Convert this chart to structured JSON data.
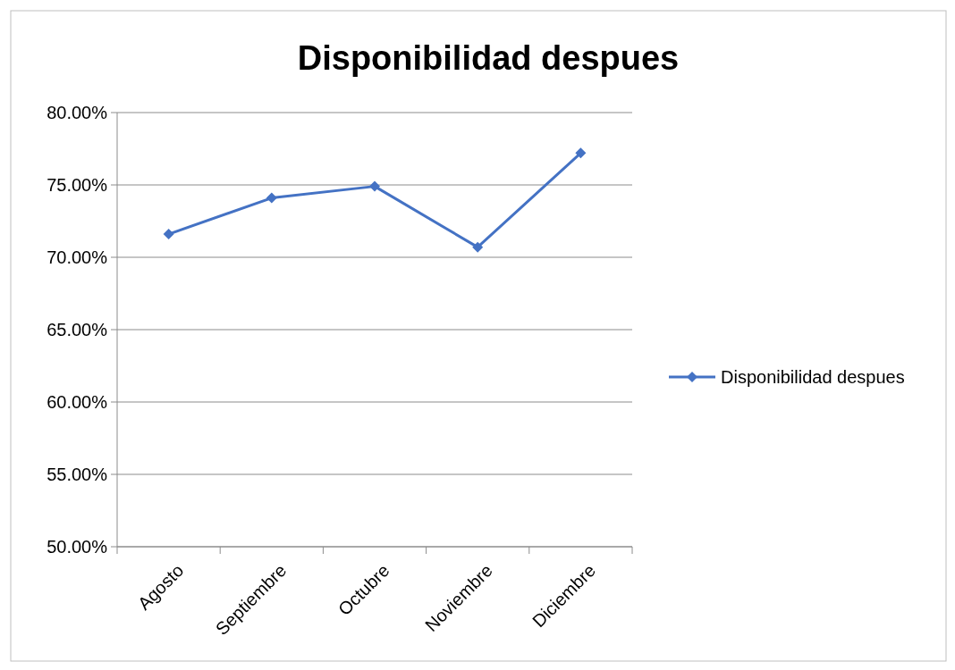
{
  "chart_data": {
    "type": "line",
    "title": "Disponibilidad despues",
    "categories": [
      "Agosto",
      "Septiembre",
      "Octubre",
      "Noviembre",
      "Diciembre"
    ],
    "series": [
      {
        "name": "Disponibilidad despues",
        "color": "#4472c4",
        "values": [
          71.6,
          74.1,
          74.9,
          70.7,
          77.2
        ]
      }
    ],
    "ylim": [
      50,
      80
    ],
    "yticks": [
      {
        "value": 50,
        "label": "50.00%"
      },
      {
        "value": 55,
        "label": "55.00%"
      },
      {
        "value": 60,
        "label": "60.00%"
      },
      {
        "value": 65,
        "label": "65.00%"
      },
      {
        "value": 70,
        "label": "70.00%"
      },
      {
        "value": 75,
        "label": "75.00%"
      },
      {
        "value": 80,
        "label": "80.00%"
      }
    ],
    "grid": "y",
    "legend": "right",
    "marker": "diamond",
    "line_style": "solid"
  }
}
